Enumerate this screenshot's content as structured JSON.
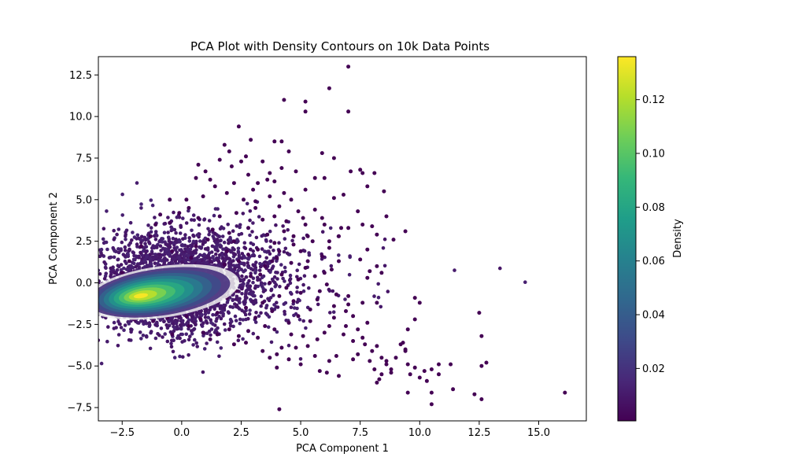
{
  "chart_data": {
    "type": "scatter",
    "title": "PCA Plot with Density Contours on 10k Data Points",
    "xlabel": "PCA Component 1",
    "ylabel": "PCA Component 2",
    "xlim": [
      -3.5,
      17.0
    ],
    "ylim": [
      -8.3,
      13.6
    ],
    "xticks": [
      -2.5,
      0.0,
      2.5,
      5.0,
      7.5,
      10.0,
      12.5,
      15.0
    ],
    "xtick_labels": [
      "−2.5",
      "0.0",
      "2.5",
      "5.0",
      "7.5",
      "10.0",
      "12.5",
      "15.0"
    ],
    "yticks": [
      -7.5,
      -5.0,
      -2.5,
      0.0,
      2.5,
      5.0,
      7.5,
      10.0,
      12.5
    ],
    "ytick_labels": [
      "−7.5",
      "−5.0",
      "−2.5",
      "0.0",
      "2.5",
      "5.0",
      "7.5",
      "10.0",
      "12.5"
    ],
    "grid": false,
    "point_color": "#440154",
    "colormap": "viridis",
    "colorbar": {
      "label": "Density",
      "range": [
        0.0005,
        0.136
      ],
      "ticks": [
        0.02,
        0.04,
        0.06,
        0.08,
        0.1,
        0.12
      ],
      "tick_labels": [
        "0.02",
        "0.04",
        "0.06",
        "0.08",
        "0.10",
        "0.12"
      ],
      "colors": [
        "#440154",
        "#482878",
        "#3e4a89",
        "#31688e",
        "#26828e",
        "#1f9e89",
        "#35b779",
        "#6ece58",
        "#b5de2b",
        "#fde725"
      ]
    },
    "density_peak": [
      -1.8,
      -0.8
    ],
    "points": [
      [
        7.0,
        13.0
      ],
      [
        6.2,
        11.7
      ],
      [
        4.3,
        11.0
      ],
      [
        5.2,
        10.9
      ],
      [
        5.2,
        10.3
      ],
      [
        7.0,
        10.3
      ],
      [
        2.4,
        9.4
      ],
      [
        2.9,
        8.6
      ],
      [
        3.9,
        8.5
      ],
      [
        4.2,
        8.5
      ],
      [
        1.8,
        8.3
      ],
      [
        4.5,
        7.9
      ],
      [
        5.9,
        7.8
      ],
      [
        6.4,
        7.5
      ],
      [
        7.1,
        6.7
      ],
      [
        7.5,
        6.8
      ],
      [
        7.6,
        6.6
      ],
      [
        8.1,
        6.6
      ],
      [
        5.6,
        6.3
      ],
      [
        6.0,
        6.3
      ],
      [
        7.8,
        5.8
      ],
      [
        8.5,
        5.5
      ],
      [
        6.8,
        5.3
      ],
      [
        5.2,
        5.6
      ],
      [
        6.4,
        5.1
      ],
      [
        8.6,
        4.0
      ],
      [
        7.4,
        4.3
      ],
      [
        9.4,
        3.1
      ],
      [
        8.0,
        3.4
      ],
      [
        7.6,
        3.5
      ],
      [
        6.0,
        3.5
      ],
      [
        7.0,
        3.3
      ],
      [
        8.2,
        2.9
      ],
      [
        8.9,
        2.6
      ],
      [
        6.6,
        2.8
      ],
      [
        6.2,
        2.1
      ],
      [
        7.8,
        2.0
      ],
      [
        7.5,
        1.4
      ],
      [
        8.2,
        1.0
      ],
      [
        7.9,
        0.7
      ],
      [
        8.4,
        0.6
      ],
      [
        7.8,
        0.3
      ],
      [
        6.6,
        1.3
      ],
      [
        6.3,
        0.8
      ],
      [
        5.6,
        0.4
      ],
      [
        6.1,
        -0.1
      ],
      [
        5.8,
        -0.5
      ],
      [
        6.5,
        -0.7
      ],
      [
        10.0,
        -1.2
      ],
      [
        9.8,
        -0.9
      ],
      [
        7.6,
        -1.2
      ],
      [
        8.2,
        -1.2
      ],
      [
        7.0,
        -1.3
      ],
      [
        6.9,
        -1.7
      ],
      [
        6.4,
        -2.1
      ],
      [
        6.2,
        -2.6
      ],
      [
        6.9,
        -2.6
      ],
      [
        7.4,
        -2.8
      ],
      [
        7.2,
        -3.5
      ],
      [
        7.7,
        -3.7
      ],
      [
        8.0,
        -4.1
      ],
      [
        7.4,
        -4.3
      ],
      [
        7.9,
        -4.7
      ],
      [
        8.6,
        -4.9
      ],
      [
        8.4,
        -4.5
      ],
      [
        9.0,
        -4.5
      ],
      [
        9.4,
        -4.1
      ],
      [
        9.3,
        -3.6
      ],
      [
        9.5,
        -2.8
      ],
      [
        9.8,
        -2.2
      ],
      [
        9.2,
        -3.7
      ],
      [
        9.4,
        -4.0
      ],
      [
        7.2,
        -4.6
      ],
      [
        8.1,
        -5.2
      ],
      [
        8.4,
        -5.5
      ],
      [
        8.8,
        -5.4
      ],
      [
        9.5,
        -4.9
      ],
      [
        9.8,
        -5.1
      ],
      [
        10.2,
        -5.3
      ],
      [
        10.5,
        -5.2
      ],
      [
        10.8,
        -4.9
      ],
      [
        11.3,
        -4.9
      ],
      [
        9.6,
        -5.5
      ],
      [
        10.0,
        -5.7
      ],
      [
        10.3,
        -5.9
      ],
      [
        10.8,
        -5.5
      ],
      [
        11.4,
        -6.4
      ],
      [
        12.3,
        -6.7
      ],
      [
        12.6,
        -7.0
      ],
      [
        10.5,
        -6.6
      ],
      [
        9.5,
        -6.6
      ],
      [
        10.5,
        -7.3
      ],
      [
        8.2,
        -6.0
      ],
      [
        8.3,
        -5.8
      ],
      [
        8.6,
        -4.7
      ],
      [
        8.8,
        -5.2
      ],
      [
        12.5,
        -1.8
      ],
      [
        12.6,
        -3.2
      ],
      [
        12.6,
        -5.0
      ],
      [
        12.8,
        -4.8
      ],
      [
        16.1,
        -6.6
      ],
      [
        4.1,
        -7.6
      ],
      [
        6.5,
        -4.4
      ],
      [
        6.2,
        -4.7
      ],
      [
        5.8,
        -5.3
      ],
      [
        6.6,
        -5.6
      ],
      [
        6.1,
        -5.4
      ],
      [
        5.6,
        -4.4
      ],
      [
        5.3,
        -3.8
      ],
      [
        5.7,
        -3.4
      ],
      [
        6.0,
        -3.0
      ],
      [
        5.1,
        -3.2
      ],
      [
        4.8,
        -3.9
      ],
      [
        4.2,
        -3.9
      ],
      [
        3.7,
        -4.5
      ],
      [
        4.0,
        -4.3
      ],
      [
        3.9,
        -2.8
      ],
      [
        4.5,
        -2.4
      ],
      [
        4.9,
        -2.0
      ],
      [
        5.4,
        -1.6
      ],
      [
        4.7,
        -1.1
      ],
      [
        5.0,
        -0.6
      ],
      [
        4.4,
        -0.3
      ],
      [
        4.9,
        0.2
      ],
      [
        5.2,
        0.9
      ],
      [
        4.6,
        1.2
      ],
      [
        5.0,
        1.9
      ],
      [
        5.5,
        2.5
      ],
      [
        4.7,
        2.8
      ],
      [
        5.2,
        3.5
      ],
      [
        4.4,
        3.7
      ],
      [
        4.9,
        4.3
      ],
      [
        4.1,
        4.6
      ],
      [
        3.7,
        5.2
      ],
      [
        4.3,
        5.4
      ],
      [
        3.6,
        6.2
      ],
      [
        3.2,
        6.0
      ],
      [
        2.8,
        6.5
      ],
      [
        2.1,
        7.0
      ],
      [
        1.6,
        7.4
      ],
      [
        2.5,
        7.3
      ],
      [
        1.0,
        6.7
      ],
      [
        0.6,
        6.3
      ],
      [
        1.4,
        5.8
      ],
      [
        0.9,
        5.2
      ],
      [
        0.2,
        5.0
      ],
      [
        1.9,
        5.4
      ],
      [
        2.6,
        5.0
      ],
      [
        3.1,
        4.5
      ],
      [
        2.3,
        4.2
      ],
      [
        3.4,
        3.8
      ],
      [
        2.8,
        3.3
      ],
      [
        3.6,
        2.9
      ],
      [
        2.0,
        3.0
      ],
      [
        3.9,
        2.4
      ],
      [
        3.2,
        2.0
      ],
      [
        4.0,
        1.5
      ],
      [
        3.5,
        1.0
      ],
      [
        4.2,
        0.5
      ],
      [
        3.7,
        0.0
      ],
      [
        4.1,
        -0.8
      ],
      [
        3.4,
        -1.2
      ],
      [
        3.8,
        -1.7
      ],
      [
        3.1,
        -2.1
      ],
      [
        3.5,
        -2.6
      ],
      [
        2.8,
        -2.9
      ],
      [
        3.2,
        -3.3
      ],
      [
        2.4,
        -3.2
      ],
      [
        2.0,
        -2.8
      ],
      [
        1.5,
        -3.1
      ],
      [
        0.9,
        -3.0
      ],
      [
        0.3,
        -2.6
      ],
      [
        -0.4,
        -3.1
      ],
      [
        2.7,
        -1.5
      ],
      [
        2.3,
        -0.5
      ],
      [
        2.9,
        0.4
      ],
      [
        2.4,
        1.3
      ],
      [
        1.9,
        1.9
      ],
      [
        2.2,
        2.5
      ],
      [
        1.3,
        3.2
      ],
      [
        0.7,
        3.9
      ],
      [
        -0.1,
        4.2
      ],
      [
        -0.5,
        3.6
      ],
      [
        -1.3,
        2.8
      ],
      [
        -1.7,
        2.2
      ],
      [
        -2.2,
        1.3
      ],
      [
        -0.9,
        4.1
      ],
      [
        0.3,
        4.5
      ],
      [
        1.6,
        4.0
      ],
      [
        1.1,
        2.6
      ],
      [
        0.6,
        2.2
      ],
      [
        1.8,
        1.1
      ],
      [
        1.4,
        0.3
      ],
      [
        1.9,
        -0.9
      ],
      [
        1.5,
        -1.8
      ],
      [
        0.8,
        -2.2
      ],
      [
        0.2,
        -2.0
      ],
      [
        -0.6,
        -2.1
      ],
      [
        -1.2,
        -2.3
      ],
      [
        -2.0,
        -2.2
      ],
      [
        0.6,
        -1.5
      ],
      [
        1.0,
        -0.7
      ],
      [
        0.4,
        1.5
      ],
      [
        -0.4,
        1.9
      ],
      [
        3.0,
        5.6
      ],
      [
        3.9,
        6.1
      ],
      [
        2.2,
        6.0
      ],
      [
        1.2,
        6.2
      ],
      [
        4.6,
        5.0
      ],
      [
        5.6,
        4.4
      ],
      [
        5.9,
        3.9
      ],
      [
        6.7,
        3.3
      ],
      [
        5.3,
        2.8
      ],
      [
        6.2,
        2.5
      ],
      [
        5.9,
        1.6
      ],
      [
        5.3,
        1.3
      ],
      [
        5.7,
        -1.0
      ],
      [
        5.4,
        -2.3
      ],
      [
        4.6,
        -3.1
      ],
      [
        4.5,
        -4.6
      ],
      [
        5.0,
        -4.9
      ],
      [
        4.0,
        -5.1
      ],
      [
        3.4,
        -4.1
      ],
      [
        2.7,
        -3.6
      ],
      [
        2.2,
        -3.7
      ],
      [
        1.2,
        -3.4
      ],
      [
        6.8,
        -3.1
      ],
      [
        7.6,
        -3.3
      ],
      [
        8.2,
        -3.8
      ],
      [
        7.8,
        -2.4
      ],
      [
        7.2,
        -2.0
      ],
      [
        6.4,
        -1.4
      ],
      [
        7.0,
        -0.8
      ],
      [
        6.0,
        0.6
      ],
      [
        5.1,
        3.9
      ],
      [
        3.4,
        7.3
      ],
      [
        2.0,
        7.9
      ],
      [
        0.7,
        7.1
      ],
      [
        -0.5,
        5.0
      ],
      [
        -1.1,
        3.5
      ],
      [
        -2.5,
        0.6
      ],
      [
        -2.6,
        -0.1
      ],
      [
        -2.8,
        -1.0
      ],
      [
        -2.4,
        -1.6
      ],
      [
        -1.6,
        -2.0
      ],
      [
        -1.0,
        -1.8
      ],
      [
        4.8,
        6.7
      ],
      [
        4.2,
        6.9
      ],
      [
        3.7,
        6.6
      ],
      [
        2.7,
        7.6
      ],
      [
        3.1,
        4.9
      ],
      [
        3.9,
        4.0
      ],
      [
        4.3,
        3.1
      ],
      [
        4.7,
        2.3
      ],
      [
        4.1,
        1.9
      ],
      [
        3.8,
        1.3
      ],
      [
        3.3,
        0.5
      ],
      [
        2.8,
        1.7
      ]
    ]
  }
}
